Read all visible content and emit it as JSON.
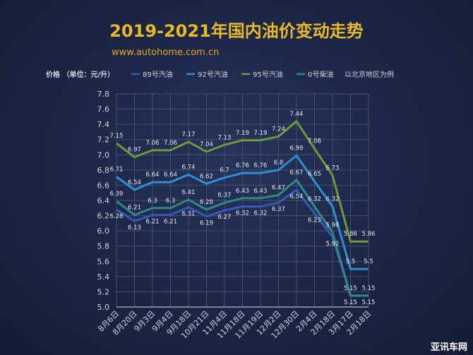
{
  "chart_data": {
    "type": "line",
    "title": "2019-2021年国内油价变动走势",
    "subtitle": "www.autohome.com.cn",
    "ylabel": "价格 （单位：元/升）",
    "note": "以北京地区为例",
    "watermark": "亚讯车网",
    "categories": [
      "8月6日",
      "8月20日",
      "9月3日",
      "9月4日",
      "9月18日",
      "10月21日",
      "11月4日",
      "11月18日",
      "11月19日",
      "12月2日",
      "12月30日",
      "2月4日",
      "2月18日",
      "3月17日",
      "2月18日"
    ],
    "ylim": [
      5.0,
      7.8
    ],
    "yticks": [
      "5.0",
      "5.2",
      "5.4",
      "5.6",
      "5.8",
      "6.0",
      "6.2",
      "6.4",
      "6.6",
      "6.8",
      "7.0",
      "7.2",
      "7.4",
      "7.6",
      "7.8"
    ],
    "grid": true,
    "legend_position": "top",
    "series": [
      {
        "name": "89号汽油",
        "color": "#3a57b8",
        "values": [
          6.28,
          6.13,
          6.21,
          6.21,
          6.31,
          6.19,
          6.27,
          6.32,
          6.32,
          6.37,
          6.54,
          6.23,
          5.92,
          5.15,
          5.15
        ]
      },
      {
        "name": "92号汽油",
        "color": "#2f8fd6",
        "values": [
          6.71,
          6.54,
          6.64,
          6.64,
          6.74,
          6.62,
          6.7,
          6.76,
          6.76,
          6.8,
          6.99,
          6.65,
          6.32,
          5.5,
          5.5
        ]
      },
      {
        "name": "95号汽油",
        "color": "#6f9a3c",
        "values": [
          7.15,
          6.97,
          7.06,
          7.06,
          7.17,
          7.04,
          7.13,
          7.19,
          7.19,
          7.24,
          7.44,
          7.08,
          6.73,
          5.86,
          5.86
        ]
      },
      {
        "name": "0号柴油",
        "color": "#2e8a86",
        "values": [
          6.39,
          6.21,
          6.3,
          6.3,
          6.41,
          6.28,
          6.37,
          6.43,
          6.43,
          6.47,
          6.67,
          6.32,
          5.98,
          5.15,
          5.15
        ]
      }
    ],
    "point_labels": [
      [
        "6.28",
        "6.13",
        "6.21",
        "6.21",
        "6.31",
        "6.19",
        "6.27",
        "6.32",
        "6.32",
        "6.37",
        "6.54",
        "6.23",
        "5.92",
        "5.15",
        "5.15"
      ],
      [
        "6.71",
        "6.54",
        "6.64",
        "6.64",
        "6.74",
        "6.62",
        "6.7",
        "6.76",
        "6.76",
        "6.8",
        "6.99",
        "6.65",
        "6.32",
        "5.5",
        "5.5"
      ],
      [
        "7.15",
        "6.97",
        "7.06",
        "7.06",
        "7.17",
        "7.04",
        "7.13",
        "7.19",
        "7.19",
        "7.24",
        "7.44",
        "7.08",
        "6.73",
        "5.86",
        "5.86"
      ],
      [
        "6.39",
        "6.21",
        "6.3",
        "6.3",
        "6.41",
        "6.28",
        "6.37",
        "6.43",
        "6.43",
        "6.47",
        "6.67",
        "6.32",
        "5.98",
        "5.15",
        "5.15"
      ]
    ]
  },
  "colors": {
    "title": "#e8b928",
    "subtitle": "#e6a91e",
    "text": "#d0d4dc",
    "grid": "#46506c",
    "axis": "#b5bac6"
  }
}
